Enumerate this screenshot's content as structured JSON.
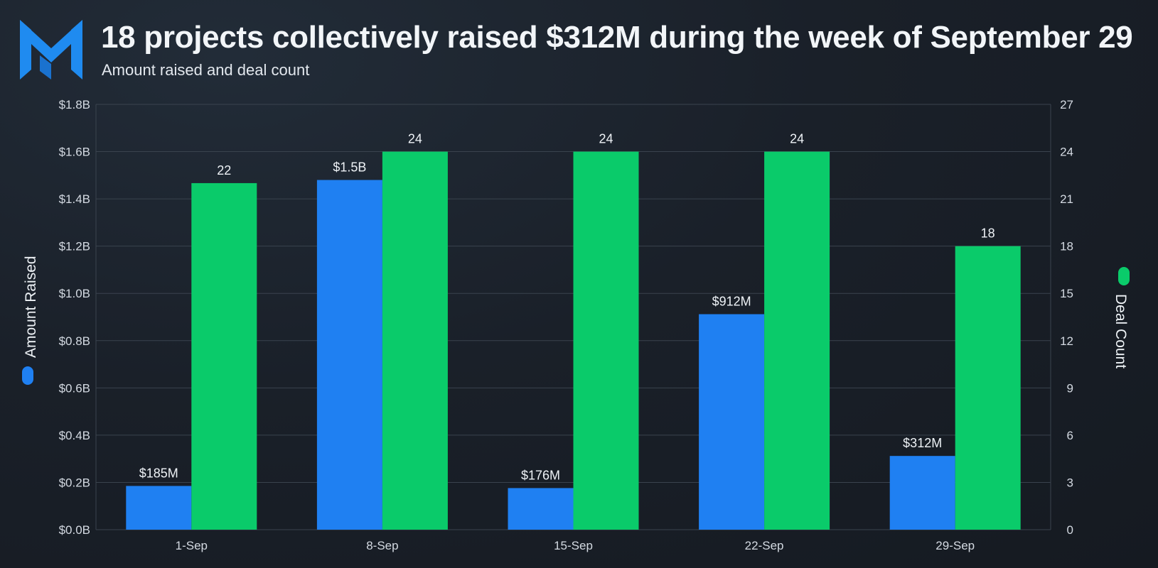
{
  "header": {
    "title": "18 projects collectively raised $312M during the week of September 29",
    "subtitle": "Amount raised and deal count"
  },
  "colors": {
    "amount": "#1f80f2",
    "deals": "#0acb6a",
    "grid": "#3a434e",
    "logo": "#1f8bf0"
  },
  "icons": {
    "logo": "brand-logo-icon",
    "amount_legend": "blue-pill-legend-icon",
    "deals_legend": "green-pill-legend-icon"
  },
  "chart_data": {
    "type": "bar",
    "categories": [
      "1-Sep",
      "8-Sep",
      "15-Sep",
      "22-Sep",
      "29-Sep"
    ],
    "series": [
      {
        "name": "Amount Raised",
        "axis": "left",
        "values": [
          0.185,
          1.48,
          0.176,
          0.912,
          0.312
        ],
        "labels": [
          "$185M",
          "$1.5B",
          "$176M",
          "$912M",
          "$312M"
        ]
      },
      {
        "name": "Deal Count",
        "axis": "right",
        "values": [
          22,
          24,
          24,
          24,
          18
        ],
        "labels": [
          "22",
          "24",
          "24",
          "24",
          "18"
        ]
      }
    ],
    "left_axis": {
      "title": "Amount Raised",
      "ylim": [
        0,
        1.8
      ],
      "ticks": [
        "$0.0B",
        "$0.2B",
        "$0.4B",
        "$0.6B",
        "$0.8B",
        "$1.0B",
        "$1.2B",
        "$1.4B",
        "$1.6B",
        "$1.8B"
      ]
    },
    "right_axis": {
      "title": "Deal Count",
      "ylim": [
        0,
        27
      ],
      "ticks": [
        "0",
        "3",
        "6",
        "9",
        "12",
        "15",
        "18",
        "21",
        "24",
        "27"
      ]
    },
    "grid": true
  }
}
